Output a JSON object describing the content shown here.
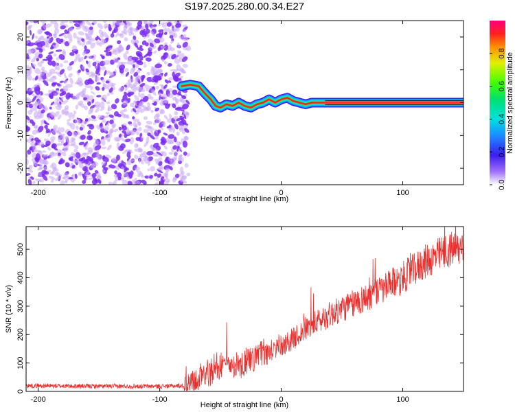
{
  "title": "S197.2025.280.00.34.E27",
  "colors": {
    "snr_line": "#e8302e",
    "spec_dot": "#7b2cf0",
    "spec_dot_light": "#c9a8f5"
  },
  "chart_data": [
    {
      "type": "heatmap",
      "xlabel": "Height of straight line (km)",
      "ylabel": "Frequency (Hz)",
      "xlim": [
        -210,
        150
      ],
      "ylim": [
        -25,
        25
      ],
      "xticks": [
        -200,
        -100,
        0,
        100
      ],
      "yticks": [
        -20,
        -10,
        0,
        10,
        20
      ],
      "colorbar": {
        "label": "Normalized spectral amplitude",
        "range": [
          0,
          1
        ],
        "ticks": [
          "0.0",
          "0.2",
          "0.4",
          "0.6",
          "0.8"
        ],
        "tick_values": [
          0.0,
          0.2,
          0.4,
          0.6,
          0.8
        ]
      },
      "noise_region_km": [
        -210,
        -82
      ],
      "ridge": {
        "x": [
          -82,
          -75,
          -68,
          -62,
          -58,
          -54,
          -50,
          -45,
          -40,
          -35,
          -30,
          -25,
          -20,
          -15,
          -10,
          -5,
          0,
          5,
          10,
          15,
          20,
          25,
          30,
          36,
          150
        ],
        "freq": [
          5,
          5.5,
          5,
          2.5,
          1,
          -1,
          -1.5,
          -0.5,
          -1,
          0,
          -1,
          -1.5,
          -0.5,
          0,
          1,
          0,
          1,
          1.5,
          0.5,
          0,
          -0.5,
          0,
          0,
          0,
          0
        ]
      }
    },
    {
      "type": "line",
      "xlabel": "Height of straight line (km)",
      "ylabel": "SNR (10 * v/v)",
      "xlim": [
        -210,
        150
      ],
      "ylim": [
        0,
        580
      ],
      "xticks": [
        -200,
        -100,
        0,
        100
      ],
      "yticks": [
        0,
        100,
        200,
        300,
        400,
        500
      ],
      "trend": {
        "x": [
          -210,
          -150,
          -100,
          -80,
          -70,
          -60,
          -50,
          -40,
          -30,
          -20,
          -10,
          0,
          10,
          20,
          40,
          60,
          80,
          100,
          120,
          140,
          150
        ],
        "y": [
          20,
          18,
          18,
          20,
          40,
          70,
          90,
          95,
          100,
          120,
          140,
          160,
          185,
          220,
          270,
          310,
          350,
          400,
          460,
          500,
          500
        ]
      }
    }
  ]
}
